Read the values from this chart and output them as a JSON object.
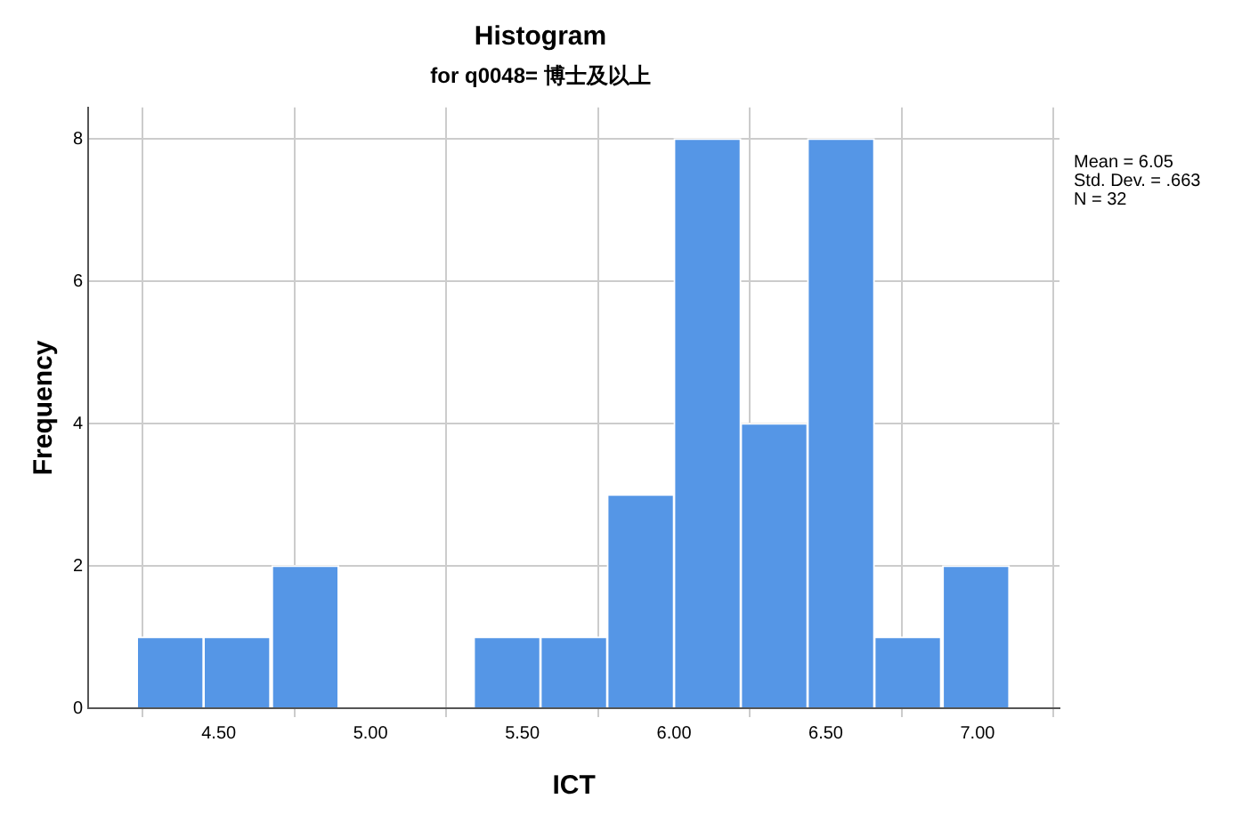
{
  "chart_data": {
    "type": "histogram",
    "title": "Histogram",
    "subtitle": "for q0048= 博士及以上",
    "xlabel": "ICT",
    "ylabel": "Frequency",
    "bins": [
      4.23,
      4.45,
      4.67,
      4.9,
      5.12,
      5.34,
      5.56,
      5.78,
      6.0,
      6.22,
      6.44,
      6.66,
      6.88,
      7.11
    ],
    "values": [
      1,
      1,
      2,
      0,
      0,
      1,
      1,
      3,
      8,
      4,
      8,
      1,
      2
    ],
    "color": "#5596e6",
    "xlim": [
      4.07,
      7.27
    ],
    "xticks": [
      {
        "value": 4.5,
        "label": "4.50"
      },
      {
        "value": 5,
        "label": "5.00"
      },
      {
        "value": 5.5,
        "label": "5.50"
      },
      {
        "value": 6,
        "label": "6.00"
      },
      {
        "value": 6.5,
        "label": "6.50"
      },
      {
        "value": 7,
        "label": "7.00"
      }
    ],
    "ylim": [
      0,
      8.44
    ],
    "yticks": [
      0,
      2,
      4,
      6,
      8
    ],
    "grid": true,
    "legend": false,
    "annotations": [
      "Mean = 6.05",
      "Std. Dev. = .663",
      "N = 32"
    ]
  }
}
